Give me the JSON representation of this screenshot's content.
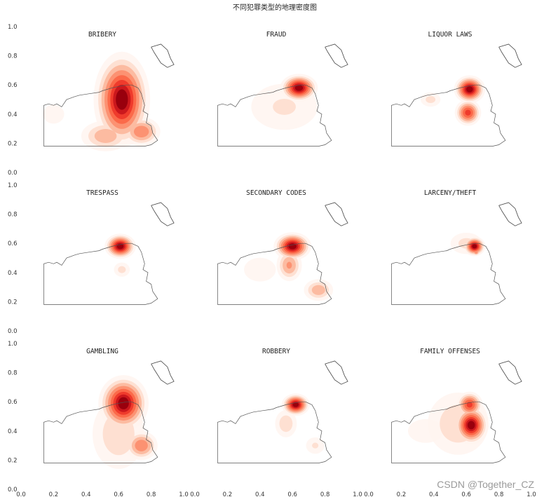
{
  "figure": {
    "title": "不同犯罪类型的地理密度图",
    "watermark": "CSDN @Together_CZ"
  },
  "chart_data": {
    "type": "heatmap",
    "subtype": "kde-density-grid",
    "rows": 3,
    "cols": 3,
    "xlim": [
      0.0,
      1.0
    ],
    "ylim": [
      0.0,
      1.0
    ],
    "ytick_labels": [
      "0.0",
      "0.2",
      "0.4",
      "0.6",
      "0.8",
      "1.0"
    ],
    "xtick_labels": [
      "0.0",
      "0.2",
      "0.4",
      "0.6",
      "0.8",
      "1.0"
    ],
    "colormap": [
      "#fff5f0",
      "#fee0d2",
      "#fcbba1",
      "#fc9272",
      "#fb6a4a",
      "#ef3b2c",
      "#cb181d",
      "#99000d"
    ],
    "panels": [
      {
        "title": "BRIBERY",
        "hotspots": [
          {
            "x": 0.62,
            "y": 0.5,
            "sx": 0.09,
            "sy": 0.17,
            "w": 1.0
          },
          {
            "x": 0.74,
            "y": 0.28,
            "sx": 0.07,
            "sy": 0.06,
            "w": 0.55
          },
          {
            "x": 0.52,
            "y": 0.25,
            "sx": 0.1,
            "sy": 0.07,
            "w": 0.4
          },
          {
            "x": 0.2,
            "y": 0.4,
            "sx": 0.12,
            "sy": 0.12,
            "w": 0.12
          }
        ]
      },
      {
        "title": "FRAUD",
        "hotspots": [
          {
            "x": 0.64,
            "y": 0.58,
            "sx": 0.06,
            "sy": 0.05,
            "w": 1.0
          },
          {
            "x": 0.55,
            "y": 0.45,
            "sx": 0.18,
            "sy": 0.14,
            "w": 0.22
          },
          {
            "x": 0.3,
            "y": 0.45,
            "sx": 0.18,
            "sy": 0.14,
            "w": 0.1
          }
        ]
      },
      {
        "title": "LIQUOR LAWS",
        "hotspots": [
          {
            "x": 0.62,
            "y": 0.57,
            "sx": 0.05,
            "sy": 0.05,
            "w": 1.0
          },
          {
            "x": 0.61,
            "y": 0.41,
            "sx": 0.045,
            "sy": 0.05,
            "w": 0.75
          },
          {
            "x": 0.38,
            "y": 0.5,
            "sx": 0.05,
            "sy": 0.04,
            "w": 0.25
          },
          {
            "x": 0.45,
            "y": 0.35,
            "sx": 0.2,
            "sy": 0.15,
            "w": 0.1
          }
        ]
      },
      {
        "title": "TRESPASS",
        "hotspots": [
          {
            "x": 0.61,
            "y": 0.58,
            "sx": 0.05,
            "sy": 0.045,
            "w": 1.0
          },
          {
            "x": 0.62,
            "y": 0.42,
            "sx": 0.04,
            "sy": 0.04,
            "w": 0.25
          },
          {
            "x": 0.45,
            "y": 0.4,
            "sx": 0.2,
            "sy": 0.15,
            "w": 0.08
          }
        ]
      },
      {
        "title": "SECONDARY CODES",
        "hotspots": [
          {
            "x": 0.6,
            "y": 0.58,
            "sx": 0.06,
            "sy": 0.05,
            "w": 1.0
          },
          {
            "x": 0.58,
            "y": 0.45,
            "sx": 0.05,
            "sy": 0.07,
            "w": 0.45
          },
          {
            "x": 0.76,
            "y": 0.28,
            "sx": 0.06,
            "sy": 0.05,
            "w": 0.4
          },
          {
            "x": 0.4,
            "y": 0.42,
            "sx": 0.18,
            "sy": 0.15,
            "w": 0.12
          }
        ]
      },
      {
        "title": "LARCENY/THEFT",
        "hotspots": [
          {
            "x": 0.65,
            "y": 0.58,
            "sx": 0.035,
            "sy": 0.035,
            "w": 1.0
          },
          {
            "x": 0.66,
            "y": 0.54,
            "sx": 0.015,
            "sy": 0.015,
            "w": 0.55
          },
          {
            "x": 0.6,
            "y": 0.6,
            "sx": 0.08,
            "sy": 0.06,
            "w": 0.25
          },
          {
            "x": 0.5,
            "y": 0.4,
            "sx": 0.2,
            "sy": 0.16,
            "w": 0.08
          }
        ]
      },
      {
        "title": "GAMBLING",
        "hotspots": [
          {
            "x": 0.63,
            "y": 0.59,
            "sx": 0.08,
            "sy": 0.1,
            "w": 1.0
          },
          {
            "x": 0.74,
            "y": 0.3,
            "sx": 0.06,
            "sy": 0.06,
            "w": 0.55
          },
          {
            "x": 0.6,
            "y": 0.38,
            "sx": 0.12,
            "sy": 0.18,
            "w": 0.3
          },
          {
            "x": 0.22,
            "y": 0.42,
            "sx": 0.1,
            "sy": 0.12,
            "w": 0.1
          }
        ]
      },
      {
        "title": "ROBBERY",
        "hotspots": [
          {
            "x": 0.62,
            "y": 0.58,
            "sx": 0.045,
            "sy": 0.04,
            "w": 1.0
          },
          {
            "x": 0.56,
            "y": 0.45,
            "sx": 0.05,
            "sy": 0.07,
            "w": 0.3
          },
          {
            "x": 0.74,
            "y": 0.3,
            "sx": 0.05,
            "sy": 0.05,
            "w": 0.22
          },
          {
            "x": 0.4,
            "y": 0.35,
            "sx": 0.18,
            "sy": 0.14,
            "w": 0.1
          }
        ]
      },
      {
        "title": "FAMILY OFFENSES",
        "hotspots": [
          {
            "x": 0.63,
            "y": 0.44,
            "sx": 0.055,
            "sy": 0.07,
            "w": 1.0
          },
          {
            "x": 0.62,
            "y": 0.58,
            "sx": 0.045,
            "sy": 0.05,
            "w": 0.75
          },
          {
            "x": 0.55,
            "y": 0.45,
            "sx": 0.14,
            "sy": 0.16,
            "w": 0.3
          },
          {
            "x": 0.35,
            "y": 0.4,
            "sx": 0.2,
            "sy": 0.15,
            "w": 0.12
          }
        ]
      }
    ]
  }
}
